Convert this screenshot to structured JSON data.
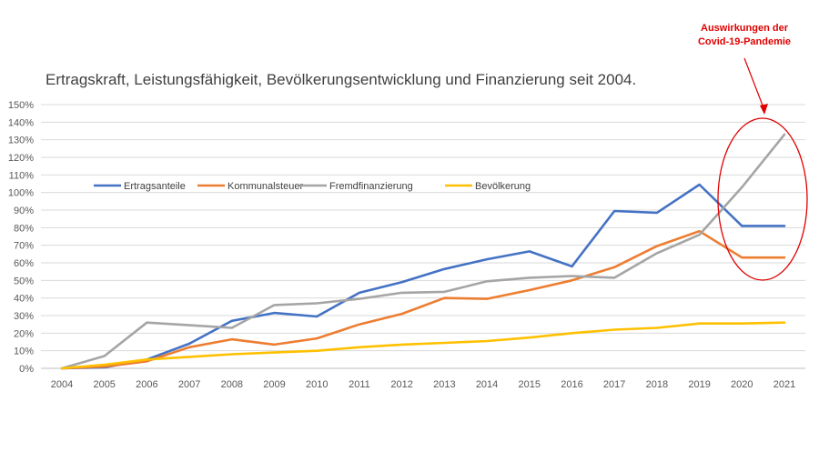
{
  "chart_data": {
    "type": "line",
    "title": "Ertragskraft, Leistungsfähigkeit, Bevölkerungsentwicklung und Finanzierung seit 2004.",
    "xlabel": "",
    "ylabel": "",
    "ylim": [
      0,
      150
    ],
    "y_unit": "%",
    "grid": true,
    "legend_position": "upper-left inside",
    "categories": [
      "2004",
      "2005",
      "2006",
      "2007",
      "2008",
      "2009",
      "2010",
      "2011",
      "2012",
      "2013",
      "2014",
      "2015",
      "2016",
      "2017",
      "2018",
      "2019",
      "2020",
      "2021"
    ],
    "y_ticks": [
      "0%",
      "10%",
      "20%",
      "30%",
      "40%",
      "50%",
      "60%",
      "70%",
      "80%",
      "90%",
      "100%",
      "110%",
      "120%",
      "130%",
      "140%",
      "150%"
    ],
    "series": [
      {
        "name": "Ertragsanteile",
        "color": "#4472c4",
        "values": [
          0,
          0.5,
          5,
          14,
          27,
          31.5,
          29.5,
          43,
          49,
          56.5,
          62,
          66.5,
          58,
          89.5,
          88.5,
          104.5,
          81,
          81
        ]
      },
      {
        "name": "Kommunalsteuer",
        "color": "#ed7d31",
        "values": [
          0,
          1,
          4,
          12,
          16.5,
          13.5,
          17,
          25,
          31,
          40,
          39.5,
          44.5,
          50,
          57.5,
          69.5,
          78,
          63,
          63
        ]
      },
      {
        "name": "Fremdfinanzierung",
        "color": "#a5a5a5",
        "values": [
          0,
          7,
          26,
          24.5,
          23,
          36,
          37,
          39.5,
          43,
          43.5,
          49.5,
          51.5,
          52.5,
          51.5,
          65.5,
          76,
          103,
          133
        ]
      },
      {
        "name": "Bevölkerung",
        "color": "#ffc000",
        "values": [
          0,
          2,
          5,
          6.5,
          8,
          9,
          10,
          12,
          13.5,
          14.5,
          15.5,
          17.5,
          20,
          22,
          23,
          25.5,
          25.5,
          26
        ]
      }
    ],
    "annotation": {
      "lines": [
        "Auswirkungen der",
        "Covid-19-Pandemie"
      ],
      "color": "#e00000"
    }
  }
}
